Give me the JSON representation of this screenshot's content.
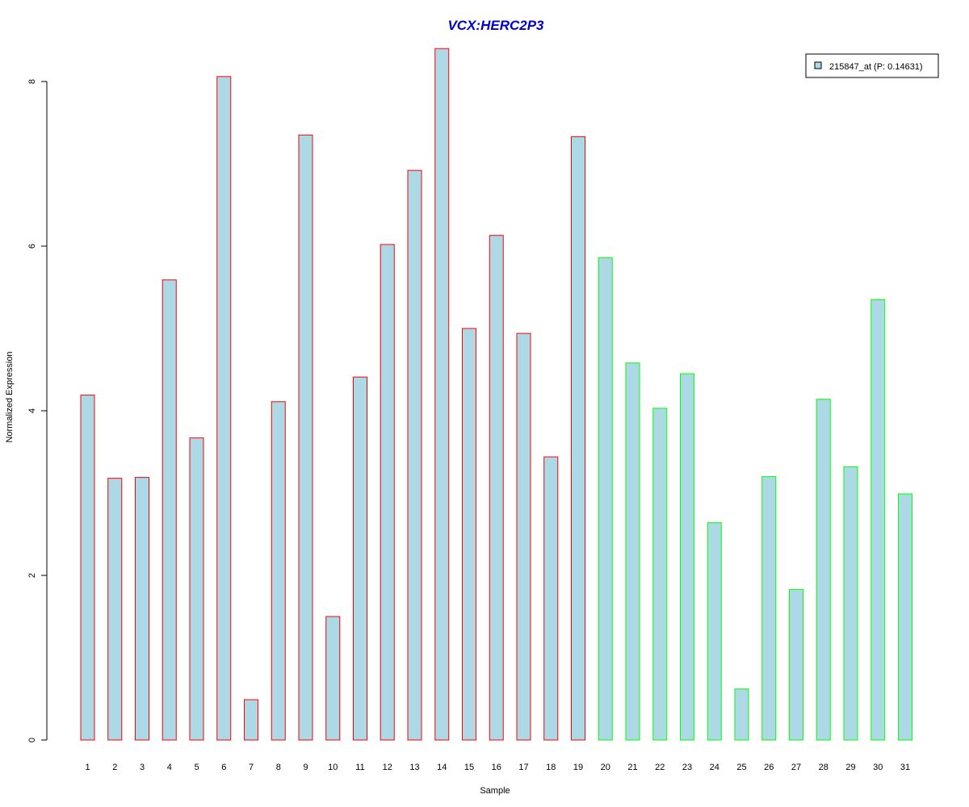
{
  "chart_data": {
    "type": "bar",
    "title": "VCX:HERC2P3",
    "xlabel": "Sample",
    "ylabel": "Normalized Expression",
    "categories": [
      "1",
      "2",
      "3",
      "4",
      "5",
      "6",
      "7",
      "8",
      "9",
      "10",
      "11",
      "12",
      "13",
      "14",
      "15",
      "16",
      "17",
      "18",
      "19",
      "20",
      "21",
      "22",
      "23",
      "24",
      "25",
      "26",
      "27",
      "28",
      "29",
      "30",
      "31"
    ],
    "values": [
      4.19,
      3.18,
      3.19,
      5.59,
      3.67,
      8.06,
      0.49,
      4.11,
      7.35,
      1.5,
      4.41,
      6.02,
      6.92,
      8.4,
      5.0,
      6.13,
      4.94,
      3.44,
      7.33,
      5.86,
      4.58,
      4.03,
      4.45,
      2.64,
      0.62,
      3.2,
      1.83,
      4.14,
      3.32,
      5.35,
      2.99
    ],
    "groups": [
      "red",
      "red",
      "red",
      "red",
      "red",
      "red",
      "red",
      "red",
      "red",
      "red",
      "red",
      "red",
      "red",
      "red",
      "red",
      "red",
      "red",
      "red",
      "red",
      "green",
      "green",
      "green",
      "green",
      "green",
      "green",
      "green",
      "green",
      "green",
      "green",
      "green",
      "green"
    ],
    "ylim": [
      0,
      8.4
    ],
    "yticks": [
      "0",
      "2",
      "4",
      "6",
      "8"
    ],
    "legend": {
      "label": "215847_at (P: 0.14631)",
      "position": "top-right"
    },
    "grid": false,
    "colors": {
      "title": "#0000cc",
      "bar_fill": "#add8e6",
      "border_red": "#ff0000",
      "border_green": "#00ff00",
      "axis": "#000000"
    }
  }
}
